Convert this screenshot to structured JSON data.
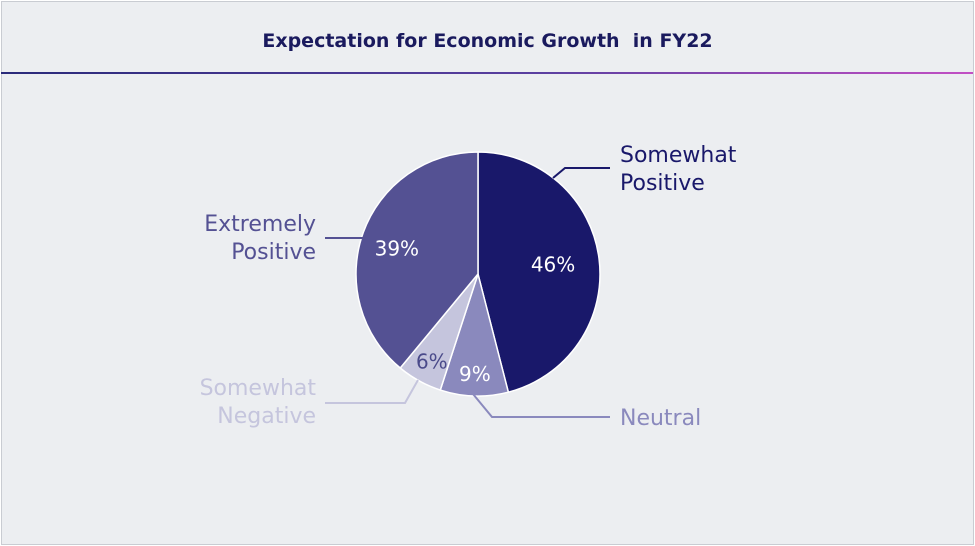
{
  "chart_data": {
    "type": "pie",
    "title": "Expectation for Economic Growth  in FY22",
    "slices": [
      {
        "label": [
          "Somewhat",
          "Positive"
        ],
        "value": 46,
        "value_label": "46%",
        "color": "#19186a",
        "label_color": "#19186a",
        "pct_color": "#ffffff"
      },
      {
        "label": [
          "Neutral"
        ],
        "value": 9,
        "value_label": "9%",
        "color": "#8a89bd",
        "label_color": "#8a89bd",
        "pct_color": "#ffffff"
      },
      {
        "label": [
          "Somewhat",
          "Negative"
        ],
        "value": 6,
        "value_label": "6%",
        "color": "#c5c5dd",
        "label_color": "#c5c5dd",
        "pct_color": "#4a4a8a"
      },
      {
        "label": [
          "Extremely",
          "Positive"
        ],
        "value": 39,
        "value_label": "39%",
        "color": "#545193",
        "label_color": "#545193",
        "pct_color": "#ffffff"
      }
    ]
  }
}
